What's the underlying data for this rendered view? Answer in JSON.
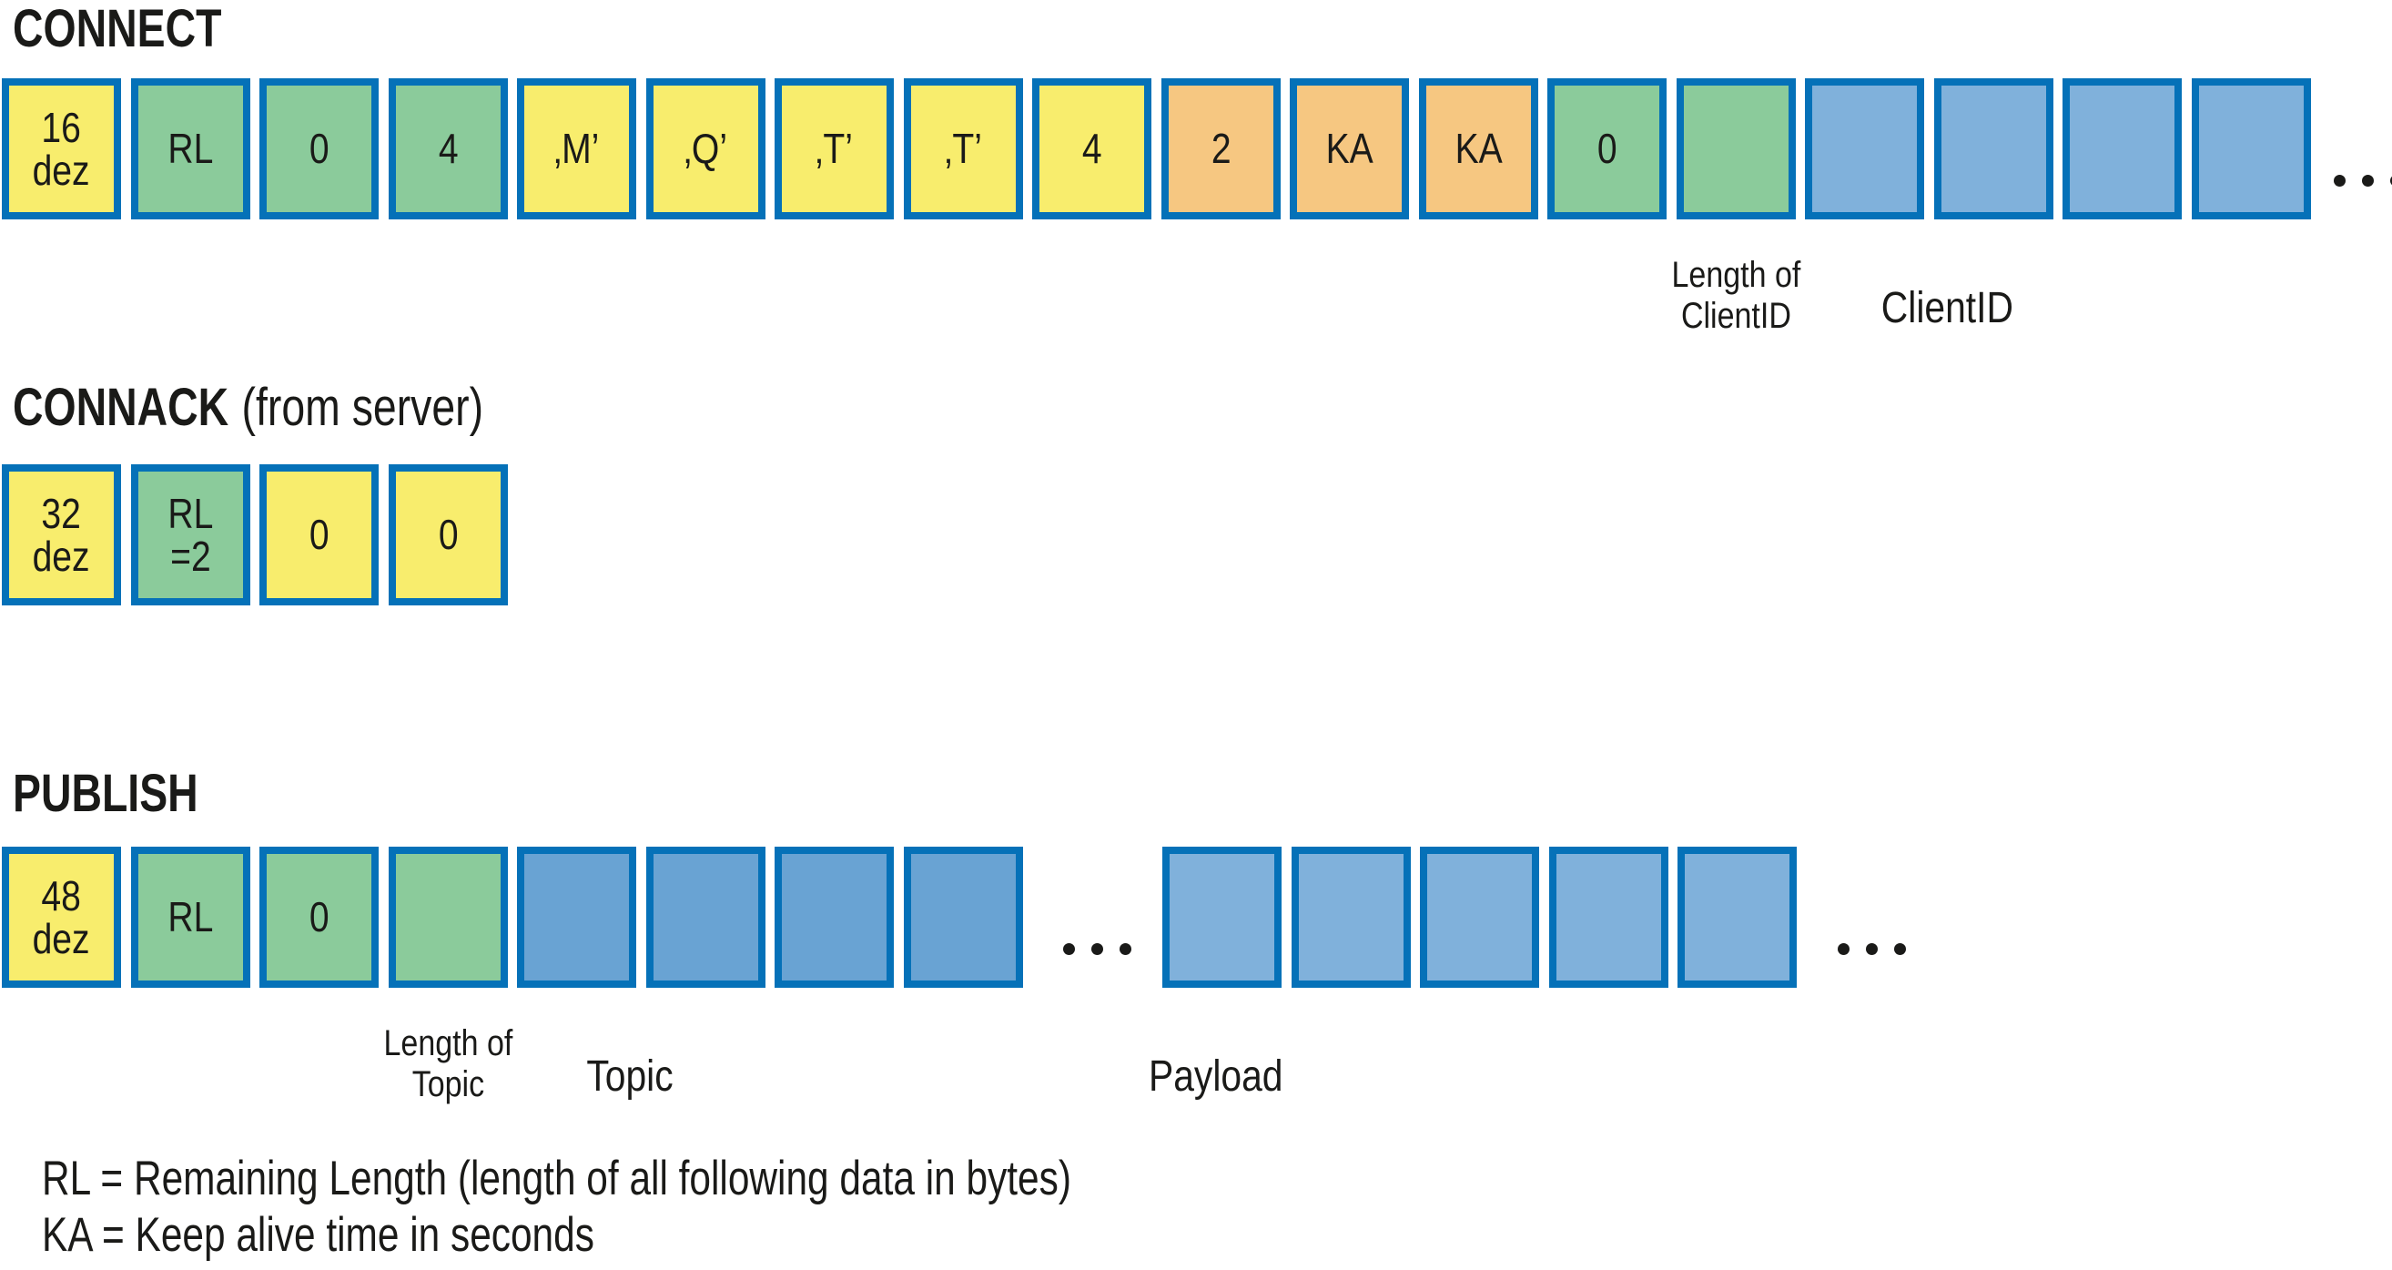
{
  "colors": {
    "yellow": "#f8ed6d",
    "green": "#8bcb9b",
    "orange": "#f6c781",
    "blue_light": "#80b1db",
    "blue_medium": "#69a3d3",
    "border_blue": "#0571b8",
    "text": "#1a1a18"
  },
  "sections": [
    {
      "id": "connect",
      "title": "CONNECT",
      "subtitle": "",
      "cells": [
        {
          "t": "box",
          "c": "yellow",
          "label": "16\ndez"
        },
        {
          "t": "box",
          "c": "green",
          "label": "RL"
        },
        {
          "t": "box",
          "c": "green",
          "label": "0"
        },
        {
          "t": "box",
          "c": "green",
          "label": "4"
        },
        {
          "t": "box",
          "c": "yellow",
          "label": "‚M’"
        },
        {
          "t": "box",
          "c": "yellow",
          "label": "‚Q’"
        },
        {
          "t": "box",
          "c": "yellow",
          "label": "‚T’"
        },
        {
          "t": "box",
          "c": "yellow",
          "label": "‚T’"
        },
        {
          "t": "box",
          "c": "yellow",
          "label": "4"
        },
        {
          "t": "box",
          "c": "orange",
          "label": "2"
        },
        {
          "t": "box",
          "c": "orange",
          "label": "KA"
        },
        {
          "t": "box",
          "c": "orange",
          "label": "KA"
        },
        {
          "t": "box",
          "c": "green",
          "label": "0"
        },
        {
          "t": "box",
          "c": "green",
          "label": ""
        },
        {
          "t": "box",
          "c": "blue_light",
          "label": ""
        },
        {
          "t": "box",
          "c": "blue_light",
          "label": ""
        },
        {
          "t": "box",
          "c": "blue_light",
          "label": ""
        },
        {
          "t": "box",
          "c": "blue_light",
          "label": ""
        },
        {
          "t": "dots",
          "w": 105
        }
      ],
      "labels": [
        "Length of\nClientID",
        "ClientID"
      ]
    },
    {
      "id": "connack",
      "title": "CONNACK",
      "subtitle": "(from server)",
      "cells": [
        {
          "t": "box",
          "c": "yellow",
          "label": "32\ndez"
        },
        {
          "t": "box",
          "c": "green",
          "label": "RL\n=2"
        },
        {
          "t": "box",
          "c": "yellow",
          "label": "0"
        },
        {
          "t": "box",
          "c": "yellow",
          "label": "0"
        }
      ],
      "labels": []
    },
    {
      "id": "publish",
      "title": "PUBLISH",
      "subtitle": "",
      "cells": [
        {
          "t": "box",
          "c": "yellow",
          "label": "48\ndez"
        },
        {
          "t": "box",
          "c": "green",
          "label": "RL"
        },
        {
          "t": "box",
          "c": "green",
          "label": "0"
        },
        {
          "t": "box",
          "c": "green",
          "label": ""
        },
        {
          "t": "box",
          "c": "blue_medium",
          "label": ""
        },
        {
          "t": "box",
          "c": "blue_medium",
          "label": ""
        },
        {
          "t": "box",
          "c": "blue_medium",
          "label": ""
        },
        {
          "t": "box",
          "c": "blue_medium",
          "label": ""
        },
        {
          "t": "dots",
          "w": 143
        },
        {
          "t": "box",
          "c": "blue_light",
          "label": ""
        },
        {
          "t": "box",
          "c": "blue_light",
          "label": ""
        },
        {
          "t": "box",
          "c": "blue_light",
          "label": ""
        },
        {
          "t": "box",
          "c": "blue_light",
          "label": ""
        },
        {
          "t": "box",
          "c": "blue_light",
          "label": ""
        },
        {
          "t": "dots",
          "w": 143
        }
      ],
      "labels": [
        "Length of\nTopic",
        "Topic",
        "Payload"
      ]
    }
  ],
  "legend": [
    "RL = Remaining Length (length of all following data in bytes)",
    "KA = Keep alive time in seconds"
  ]
}
